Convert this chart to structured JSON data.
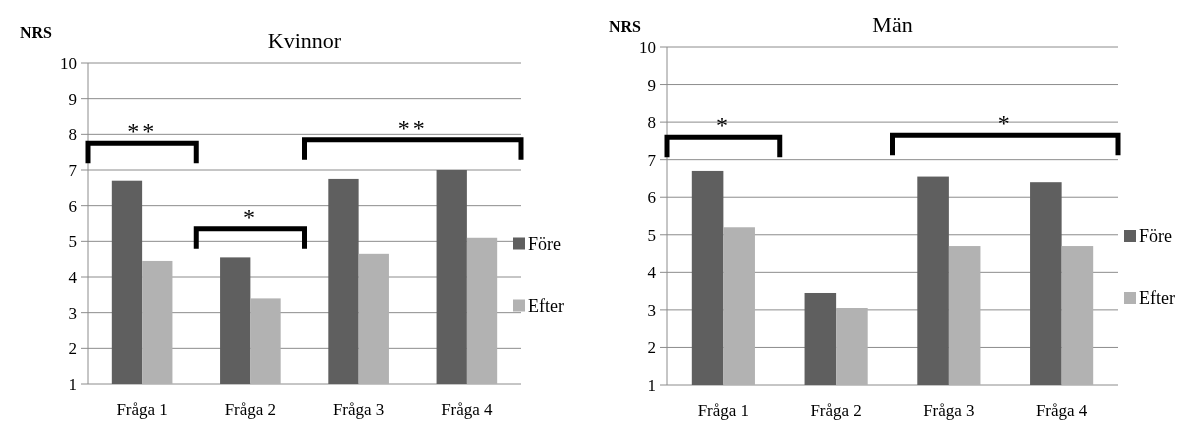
{
  "chart_data": [
    {
      "type": "bar",
      "title": "Kvinnor",
      "ylabel": "NRS",
      "categories": [
        "Fråga 1",
        "Fråga 2",
        "Fråga 3",
        "Fråga 4"
      ],
      "series": [
        {
          "name": "Före",
          "color": "#5f5f5f",
          "values": [
            6.7,
            4.55,
            6.75,
            7.0
          ]
        },
        {
          "name": "Efter",
          "color": "#b2b2b2",
          "values": [
            4.45,
            3.4,
            4.65,
            5.1
          ]
        }
      ],
      "ylim": [
        1,
        10
      ],
      "yticks": [
        1,
        2,
        3,
        4,
        5,
        6,
        7,
        8,
        9,
        10
      ],
      "grid": "y",
      "legend": "right",
      "annotations": [
        "**",
        "*",
        "**"
      ]
    },
    {
      "type": "bar",
      "title": "Män",
      "ylabel": "NRS",
      "categories": [
        "Fråga 1",
        "Fråga 2",
        "Fråga 3",
        "Fråga 4"
      ],
      "series": [
        {
          "name": "Före",
          "color": "#5f5f5f",
          "values": [
            6.7,
            3.45,
            6.55,
            6.4
          ]
        },
        {
          "name": "Efter",
          "color": "#b2b2b2",
          "values": [
            5.2,
            3.05,
            4.7,
            4.7
          ]
        }
      ],
      "ylim": [
        1,
        10
      ],
      "yticks": [
        1,
        2,
        3,
        4,
        5,
        6,
        7,
        8,
        9,
        10
      ],
      "grid": "y",
      "legend": "right",
      "annotations": [
        "*",
        "*"
      ]
    }
  ]
}
